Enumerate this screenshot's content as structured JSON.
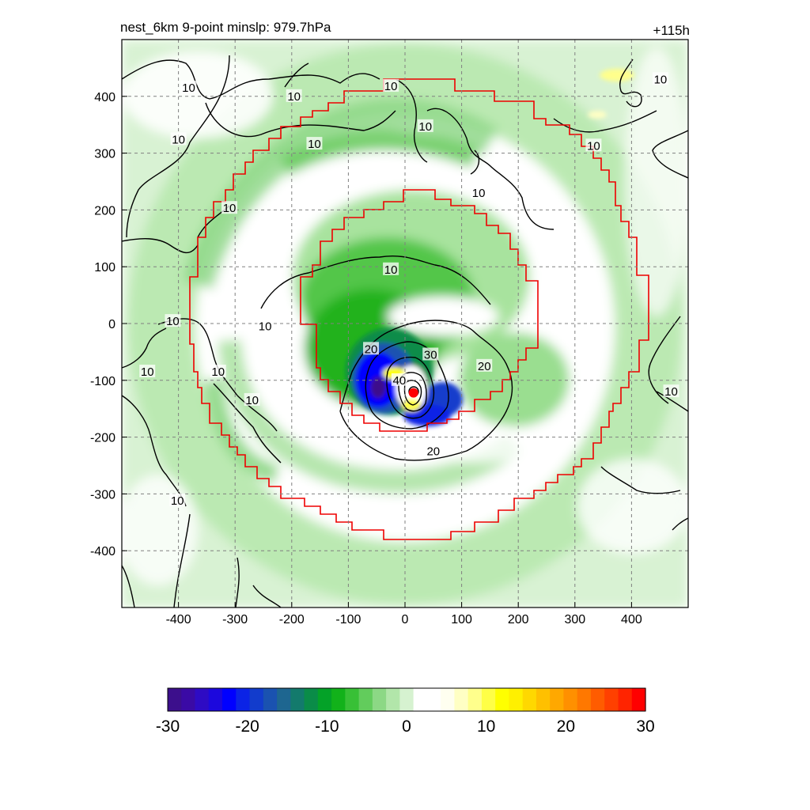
{
  "title": "nest_6km  9-point minslp: 979.7hPa",
  "forecast_hour": "+115h",
  "chart_data": {
    "type": "heatmap",
    "title": "nest_6km  9-point minslp: 979.7hPa",
    "corner_label": "+115h",
    "xlim": [
      -500,
      500
    ],
    "ylim": [
      -500,
      500
    ],
    "x_ticks": [
      -400,
      -300,
      -200,
      -100,
      0,
      100,
      200,
      300,
      400
    ],
    "y_ticks": [
      400,
      300,
      200,
      100,
      0,
      -100,
      -200,
      -300,
      -400
    ],
    "grid": true,
    "colorbar": {
      "min": -30,
      "max": 30,
      "ticks": [
        -30,
        -20,
        -10,
        0,
        10,
        20,
        30
      ],
      "colors": [
        "#3c0f8c",
        "#3a0aa5",
        "#2e0bc4",
        "#1c08dd",
        "#0000ff",
        "#0b23e6",
        "#123ccc",
        "#1a52b0",
        "#1e6690",
        "#137a6c",
        "#0a8c48",
        "#04a228",
        "#12b21a",
        "#38c036",
        "#62cc5c",
        "#8cd885",
        "#b2e6aa",
        "#d6f2d0",
        "#ffffff",
        "#ffffff",
        "#fffff0",
        "#ffffc4",
        "#ffff8c",
        "#ffff46",
        "#ffff00",
        "#fff000",
        "#ffd800",
        "#ffc000",
        "#ffa800",
        "#ff9000",
        "#ff7800",
        "#ff5c00",
        "#ff4000",
        "#ff2400",
        "#ff0000"
      ]
    },
    "contour_levels": [
      10,
      20,
      30,
      40
    ],
    "contour_labels": [
      {
        "text": "10",
        "x": -382,
        "y": 415
      },
      {
        "text": "10",
        "x": -196,
        "y": 400
      },
      {
        "text": "10",
        "x": -25,
        "y": 418
      },
      {
        "text": "10",
        "x": 36,
        "y": 347
      },
      {
        "text": "10",
        "x": -160,
        "y": 316
      },
      {
        "text": "10",
        "x": -400,
        "y": 324
      },
      {
        "text": "10",
        "x": 333,
        "y": 313
      },
      {
        "text": "10",
        "x": 451,
        "y": 430
      },
      {
        "text": "10",
        "x": 130,
        "y": 230
      },
      {
        "text": "10",
        "x": -310,
        "y": 203
      },
      {
        "text": "10",
        "x": -25,
        "y": 95
      },
      {
        "text": "10",
        "x": -247,
        "y": -5
      },
      {
        "text": "10",
        "x": -410,
        "y": 4
      },
      {
        "text": "10",
        "x": -455,
        "y": -85
      },
      {
        "text": "10",
        "x": -330,
        "y": -85
      },
      {
        "text": "10",
        "x": -270,
        "y": -135
      },
      {
        "text": "10",
        "x": 470,
        "y": -120
      },
      {
        "text": "10",
        "x": -402,
        "y": -312
      },
      {
        "text": "20",
        "x": -60,
        "y": -45
      },
      {
        "text": "20",
        "x": 140,
        "y": -75
      },
      {
        "text": "20",
        "x": 50,
        "y": -225
      },
      {
        "text": "30",
        "x": 45,
        "y": -55
      },
      {
        "text": "40",
        "x": -10,
        "y": -100
      }
    ],
    "minimum_pressure_marker": {
      "x": 15,
      "y": -122
    }
  }
}
